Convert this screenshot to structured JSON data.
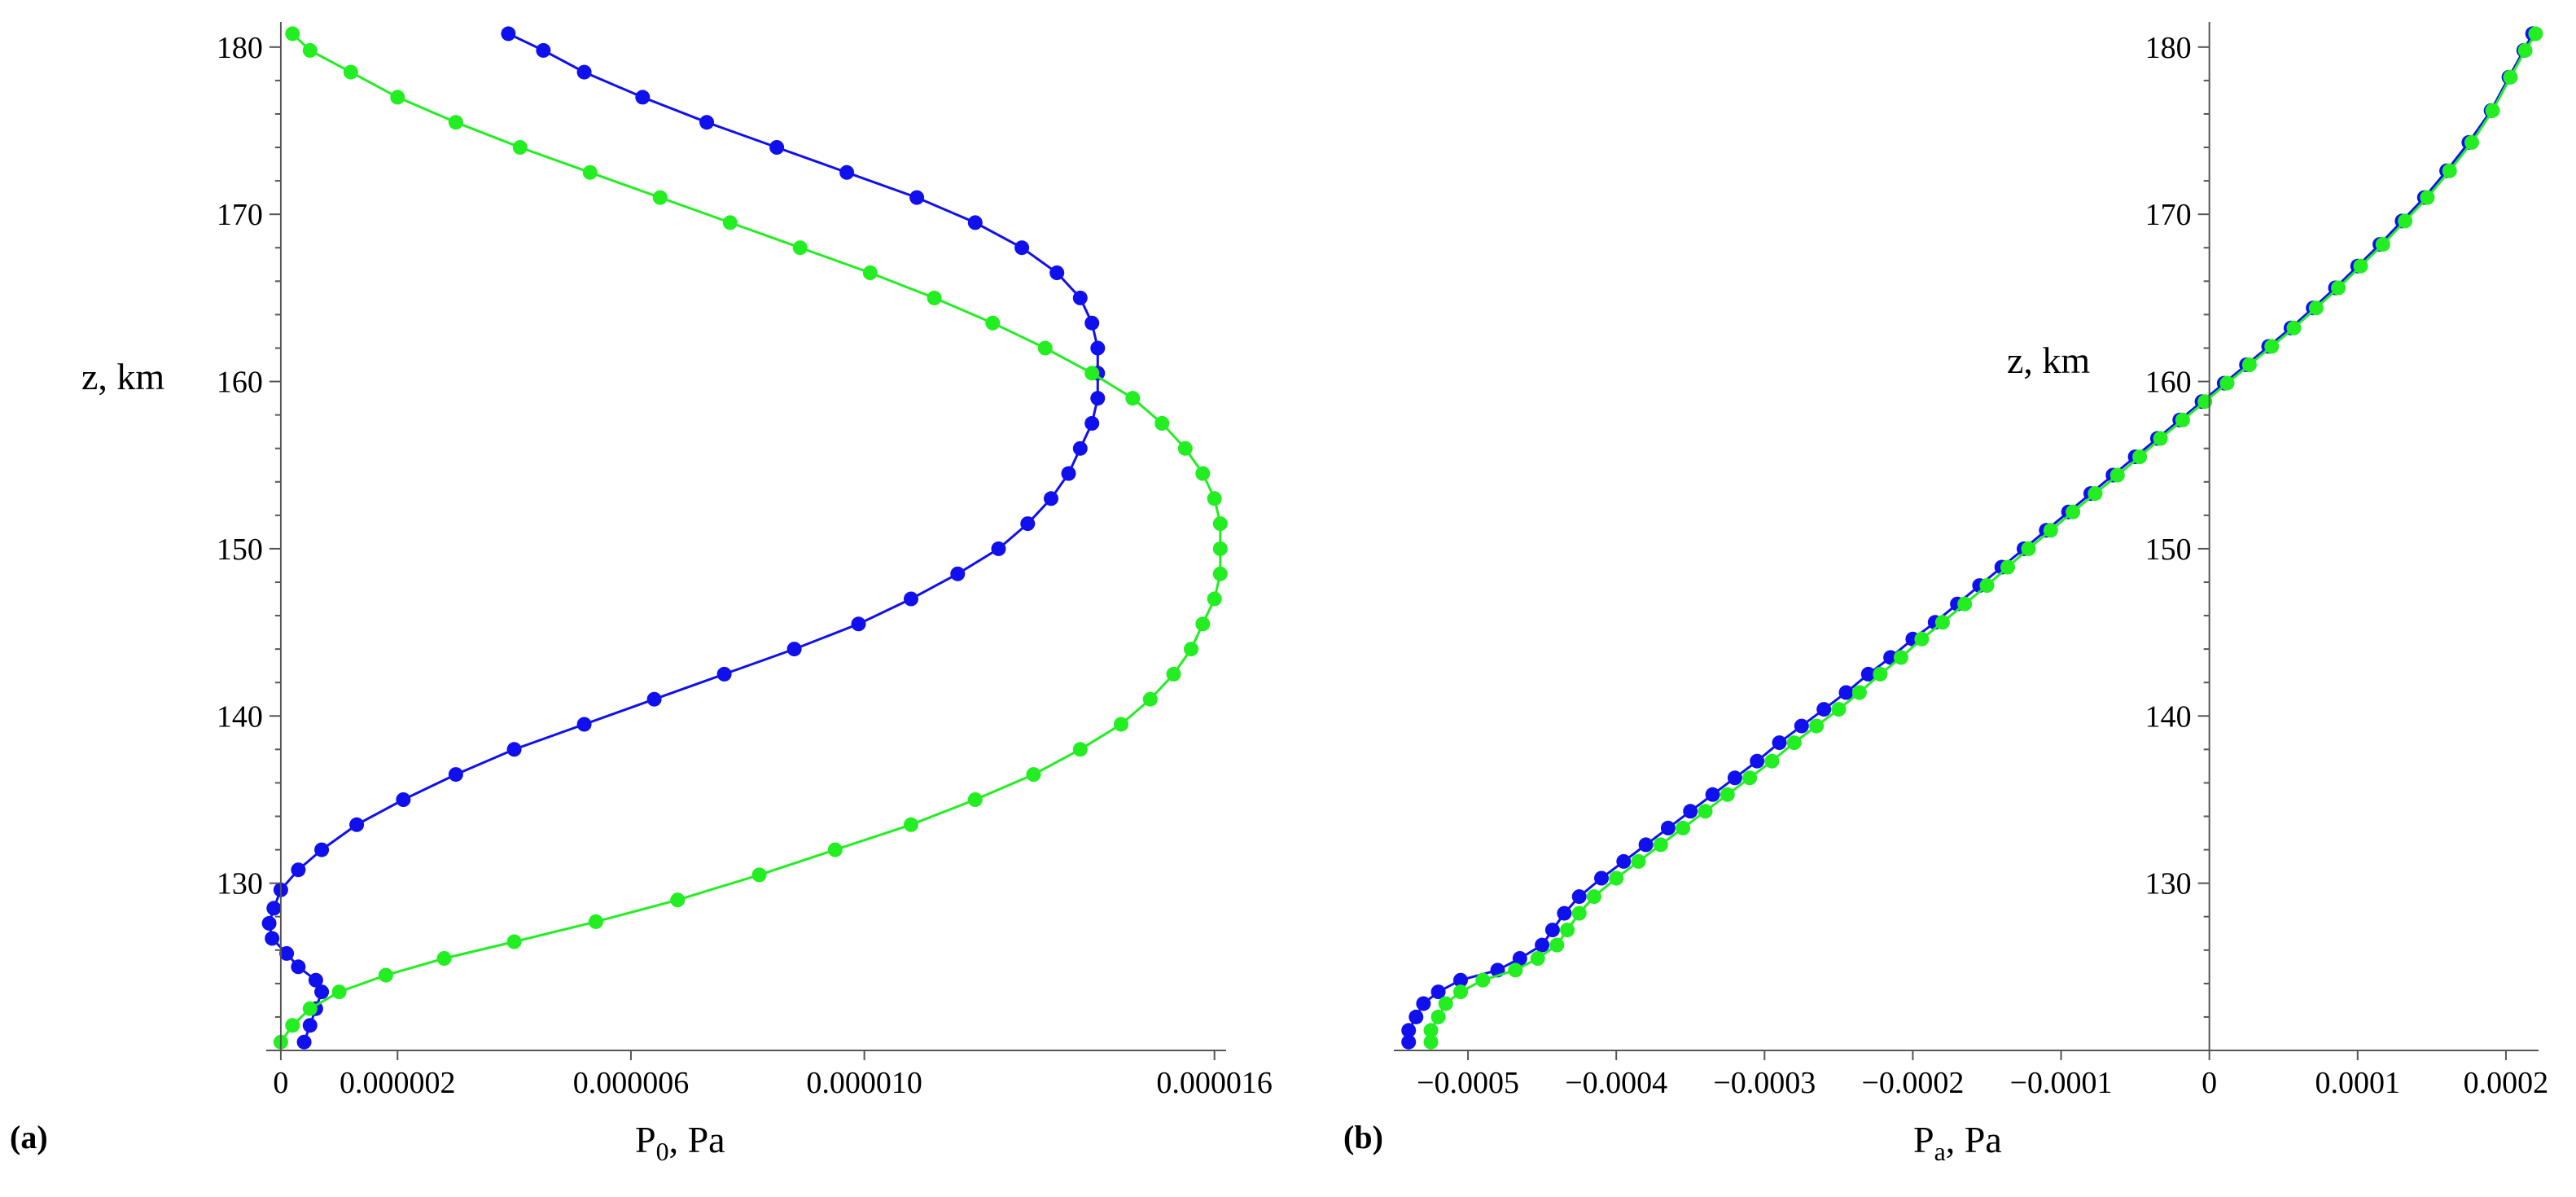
{
  "figure": {
    "background": "#ffffff"
  },
  "chart_data": [
    {
      "type": "line",
      "panel_label": "(a)",
      "xlabel_main": "P",
      "xlabel_sub": "0",
      "xlabel_tail": ", Pa",
      "ylabel": "z, km",
      "xlim": [
        -2.5e-07,
        1.62e-05
      ],
      "ylim": [
        120,
        181.5
      ],
      "xticks": [
        {
          "value": 0,
          "label": "0"
        },
        {
          "value": 2e-06,
          "label": "0.000002"
        },
        {
          "value": 6e-06,
          "label": "0.000006"
        },
        {
          "value": 1e-05,
          "label": "0.000010"
        },
        {
          "value": 1.6e-05,
          "label": "0.000016"
        }
      ],
      "yticks": [
        {
          "value": 130,
          "label": "130"
        },
        {
          "value": 140,
          "label": "140"
        },
        {
          "value": 150,
          "label": "150"
        },
        {
          "value": 160,
          "label": "160"
        },
        {
          "value": 170,
          "label": "170"
        },
        {
          "value": 180,
          "label": "180"
        }
      ],
      "markers": true,
      "series": [
        {
          "color": "#1010ee",
          "points": [
            [
              4e-07,
              120.5
            ],
            [
              5e-07,
              121.5
            ],
            [
              6e-07,
              122.5
            ],
            [
              7e-07,
              123.5
            ],
            [
              6e-07,
              124.2
            ],
            [
              3e-07,
              125.0
            ],
            [
              1e-07,
              125.8
            ],
            [
              -1.5e-07,
              126.7
            ],
            [
              -2e-07,
              127.6
            ],
            [
              -1.2e-07,
              128.5
            ],
            [
              0,
              129.6
            ],
            [
              3e-07,
              130.8
            ],
            [
              7e-07,
              132.0
            ],
            [
              1.3e-06,
              133.5
            ],
            [
              2.1e-06,
              135.0
            ],
            [
              3e-06,
              136.5
            ],
            [
              4e-06,
              138.0
            ],
            [
              5.2e-06,
              139.5
            ],
            [
              6.4e-06,
              141.0
            ],
            [
              7.6e-06,
              142.5
            ],
            [
              8.8e-06,
              144.0
            ],
            [
              9.9e-06,
              145.5
            ],
            [
              1.08e-05,
              147.0
            ],
            [
              1.16e-05,
              148.5
            ],
            [
              1.23e-05,
              150.0
            ],
            [
              1.28e-05,
              151.5
            ],
            [
              1.32e-05,
              153.0
            ],
            [
              1.35e-05,
              154.5
            ],
            [
              1.37e-05,
              156.0
            ],
            [
              1.39e-05,
              157.5
            ],
            [
              1.4e-05,
              159.0
            ],
            [
              1.4e-05,
              160.5
            ],
            [
              1.4e-05,
              162.0
            ],
            [
              1.39e-05,
              163.5
            ],
            [
              1.37e-05,
              165.0
            ],
            [
              1.33e-05,
              166.5
            ],
            [
              1.27e-05,
              168.0
            ],
            [
              1.19e-05,
              169.5
            ],
            [
              1.09e-05,
              171.0
            ],
            [
              9.7e-06,
              172.5
            ],
            [
              8.5e-06,
              174.0
            ],
            [
              7.3e-06,
              175.5
            ],
            [
              6.2e-06,
              177.0
            ],
            [
              5.2e-06,
              178.5
            ],
            [
              4.5e-06,
              179.8
            ],
            [
              3.9e-06,
              180.8
            ]
          ]
        },
        {
          "color": "#22ee22",
          "points": [
            [
              0,
              120.5
            ],
            [
              2e-07,
              121.5
            ],
            [
              5e-07,
              122.5
            ],
            [
              1e-06,
              123.5
            ],
            [
              1.8e-06,
              124.5
            ],
            [
              2.8e-06,
              125.5
            ],
            [
              4e-06,
              126.5
            ],
            [
              5.4e-06,
              127.7
            ],
            [
              6.8e-06,
              129.0
            ],
            [
              8.2e-06,
              130.5
            ],
            [
              9.5e-06,
              132.0
            ],
            [
              1.08e-05,
              133.5
            ],
            [
              1.19e-05,
              135.0
            ],
            [
              1.29e-05,
              136.5
            ],
            [
              1.37e-05,
              138.0
            ],
            [
              1.44e-05,
              139.5
            ],
            [
              1.49e-05,
              141.0
            ],
            [
              1.53e-05,
              142.5
            ],
            [
              1.56e-05,
              144.0
            ],
            [
              1.58e-05,
              145.5
            ],
            [
              1.6e-05,
              147.0
            ],
            [
              1.61e-05,
              148.5
            ],
            [
              1.61e-05,
              150.0
            ],
            [
              1.61e-05,
              151.5
            ],
            [
              1.6e-05,
              153.0
            ],
            [
              1.58e-05,
              154.5
            ],
            [
              1.55e-05,
              156.0
            ],
            [
              1.51e-05,
              157.5
            ],
            [
              1.46e-05,
              159.0
            ],
            [
              1.39e-05,
              160.5
            ],
            [
              1.31e-05,
              162.0
            ],
            [
              1.22e-05,
              163.5
            ],
            [
              1.12e-05,
              165.0
            ],
            [
              1.01e-05,
              166.5
            ],
            [
              8.9e-06,
              168.0
            ],
            [
              7.7e-06,
              169.5
            ],
            [
              6.5e-06,
              171.0
            ],
            [
              5.3e-06,
              172.5
            ],
            [
              4.1e-06,
              174.0
            ],
            [
              3e-06,
              175.5
            ],
            [
              2e-06,
              177.0
            ],
            [
              1.2e-06,
              178.5
            ],
            [
              5e-07,
              179.8
            ],
            [
              2e-07,
              180.8
            ]
          ]
        }
      ]
    },
    {
      "type": "line",
      "panel_label": "(b)",
      "xlabel_main": "P",
      "xlabel_sub": "a",
      "xlabel_tail": ", Pa",
      "ylabel": "z, km",
      "xlim": [
        -0.00055,
        0.000222
      ],
      "ylim": [
        120,
        181.5
      ],
      "xticks": [
        {
          "value": -0.0005,
          "label": "−0.0005"
        },
        {
          "value": -0.0004,
          "label": "−0.0004"
        },
        {
          "value": -0.0003,
          "label": "−0.0003"
        },
        {
          "value": -0.0002,
          "label": "−0.0002"
        },
        {
          "value": -0.0001,
          "label": "−0.0001"
        },
        {
          "value": 0,
          "label": "0"
        },
        {
          "value": 0.0001,
          "label": "0.0001"
        },
        {
          "value": 0.0002,
          "label": "0.0002"
        }
      ],
      "yticks": [
        {
          "value": 130,
          "label": "130"
        },
        {
          "value": 140,
          "label": "140"
        },
        {
          "value": 150,
          "label": "150"
        },
        {
          "value": 160,
          "label": "160"
        },
        {
          "value": 170,
          "label": "170"
        },
        {
          "value": 180,
          "label": "180"
        }
      ],
      "markers": true,
      "series": [
        {
          "color": "#1010ee",
          "points": [
            [
              -0.00054,
              120.5
            ],
            [
              -0.00054,
              121.2
            ],
            [
              -0.000535,
              122.0
            ],
            [
              -0.00053,
              122.8
            ],
            [
              -0.00052,
              123.5
            ],
            [
              -0.000505,
              124.2
            ],
            [
              -0.00048,
              124.8
            ],
            [
              -0.000465,
              125.5
            ],
            [
              -0.00045,
              126.3
            ],
            [
              -0.000443,
              127.2
            ],
            [
              -0.000435,
              128.2
            ],
            [
              -0.000425,
              129.2
            ],
            [
              -0.00041,
              130.3
            ],
            [
              -0.000395,
              131.3
            ],
            [
              -0.00038,
              132.3
            ],
            [
              -0.000365,
              133.3
            ],
            [
              -0.00035,
              134.3
            ],
            [
              -0.000335,
              135.3
            ],
            [
              -0.00032,
              136.3
            ],
            [
              -0.000305,
              137.3
            ],
            [
              -0.00029,
              138.4
            ],
            [
              -0.000275,
              139.4
            ],
            [
              -0.00026,
              140.4
            ],
            [
              -0.000245,
              141.4
            ],
            [
              -0.00023,
              142.5
            ],
            [
              -0.000215,
              143.5
            ],
            [
              -0.0002,
              144.6
            ],
            [
              -0.000185,
              145.6
            ],
            [
              -0.00017,
              146.7
            ],
            [
              -0.000155,
              147.8
            ],
            [
              -0.00014,
              148.9
            ],
            [
              -0.000125,
              150.0
            ],
            [
              -0.00011,
              151.1
            ],
            [
              -9.5e-05,
              152.2
            ],
            [
              -8e-05,
              153.3
            ],
            [
              -6.5e-05,
              154.4
            ],
            [
              -5e-05,
              155.5
            ],
            [
              -3.5e-05,
              156.6
            ],
            [
              -2e-05,
              157.7
            ],
            [
              -5e-06,
              158.8
            ],
            [
              1e-05,
              159.9
            ],
            [
              2.5e-05,
              161.0
            ],
            [
              4e-05,
              162.1
            ],
            [
              5.5e-05,
              163.2
            ],
            [
              7e-05,
              164.4
            ],
            [
              8.5e-05,
              165.6
            ],
            [
              0.0001,
              166.9
            ],
            [
              0.000115,
              168.2
            ],
            [
              0.00013,
              169.6
            ],
            [
              0.000145,
              171.0
            ],
            [
              0.00016,
              172.6
            ],
            [
              0.000175,
              174.3
            ],
            [
              0.00019,
              176.2
            ],
            [
              0.000202,
              178.2
            ],
            [
              0.000212,
              179.8
            ],
            [
              0.000218,
              180.8
            ]
          ]
        },
        {
          "color": "#22ee22",
          "points": [
            [
              -0.000525,
              120.5
            ],
            [
              -0.000525,
              121.2
            ],
            [
              -0.00052,
              122.0
            ],
            [
              -0.000515,
              122.8
            ],
            [
              -0.000505,
              123.5
            ],
            [
              -0.00049,
              124.2
            ],
            [
              -0.000468,
              124.8
            ],
            [
              -0.000453,
              125.5
            ],
            [
              -0.00044,
              126.3
            ],
            [
              -0.000433,
              127.2
            ],
            [
              -0.000425,
              128.2
            ],
            [
              -0.000415,
              129.2
            ],
            [
              -0.0004,
              130.3
            ],
            [
              -0.000385,
              131.3
            ],
            [
              -0.00037,
              132.3
            ],
            [
              -0.000355,
              133.3
            ],
            [
              -0.00034,
              134.3
            ],
            [
              -0.000325,
              135.3
            ],
            [
              -0.00031,
              136.3
            ],
            [
              -0.000295,
              137.3
            ],
            [
              -0.00028,
              138.4
            ],
            [
              -0.000265,
              139.4
            ],
            [
              -0.00025,
              140.4
            ],
            [
              -0.000236,
              141.4
            ],
            [
              -0.000222,
              142.5
            ],
            [
              -0.000208,
              143.5
            ],
            [
              -0.000194,
              144.6
            ],
            [
              -0.00018,
              145.6
            ],
            [
              -0.000165,
              146.7
            ],
            [
              -0.00015,
              147.8
            ],
            [
              -0.000136,
              148.9
            ],
            [
              -0.000122,
              150.0
            ],
            [
              -0.000107,
              151.1
            ],
            [
              -9.2e-05,
              152.2
            ],
            [
              -7.7e-05,
              153.3
            ],
            [
              -6.2e-05,
              154.4
            ],
            [
              -4.7e-05,
              155.5
            ],
            [
              -3.3e-05,
              156.6
            ],
            [
              -1.8e-05,
              157.7
            ],
            [
              -3e-06,
              158.8
            ],
            [
              1.2e-05,
              159.9
            ],
            [
              2.7e-05,
              161.0
            ],
            [
              4.2e-05,
              162.1
            ],
            [
              5.7e-05,
              163.2
            ],
            [
              7.2e-05,
              164.4
            ],
            [
              8.7e-05,
              165.6
            ],
            [
              0.000102,
              166.9
            ],
            [
              0.000117,
              168.2
            ],
            [
              0.000132,
              169.6
            ],
            [
              0.000147,
              171.0
            ],
            [
              0.000162,
              172.6
            ],
            [
              0.000177,
              174.3
            ],
            [
              0.000191,
              176.2
            ],
            [
              0.000203,
              178.2
            ],
            [
              0.000213,
              179.8
            ],
            [
              0.00022,
              180.8
            ]
          ]
        }
      ]
    }
  ]
}
